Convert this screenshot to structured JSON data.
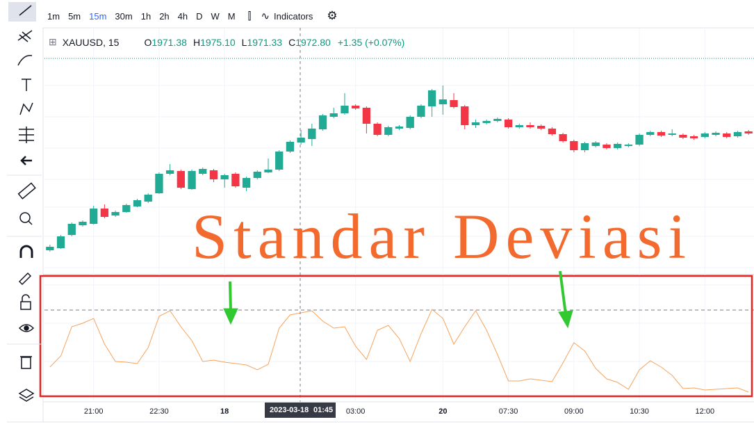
{
  "toolbar": {
    "timeframes": [
      "1m",
      "5m",
      "15m",
      "30m",
      "1h",
      "2h",
      "4h",
      "D",
      "W",
      "M"
    ],
    "active": "15m",
    "indicators": "Indicators"
  },
  "legend": {
    "symbol": "XAUUSD, 15",
    "ohlc": [
      {
        "key": "O",
        "value": "1971.38"
      },
      {
        "key": "H",
        "value": "1975.10"
      },
      {
        "key": "L",
        "value": "1971.33"
      },
      {
        "key": "C",
        "value": "1972.80"
      }
    ],
    "change": "+1.35 (+0.07%)"
  },
  "overlay_title": "Standar Deviasi",
  "crosshair": {
    "date": "2023-03-18",
    "time": "01:45"
  },
  "chart_data": {
    "type": "candlestick",
    "categories": [
      null,
      null,
      null,
      null,
      "21:00",
      null,
      null,
      null,
      null,
      null,
      "22:30",
      null,
      null,
      null,
      null,
      null,
      "18",
      null,
      null,
      null,
      null,
      null,
      null,
      null,
      null,
      null,
      null,
      null,
      "03:00",
      null,
      null,
      null,
      null,
      null,
      null,
      null,
      "20",
      null,
      null,
      null,
      null,
      null,
      "07:30",
      null,
      null,
      null,
      null,
      null,
      "09:00",
      null,
      null,
      null,
      null,
      null,
      "10:30",
      null,
      null,
      null,
      null,
      null,
      "12:00",
      null,
      null,
      null,
      null
    ],
    "open": [
      1930,
      1930.75,
      1935.5,
      1939,
      1939.5,
      1945,
      1942.5,
      1943.75,
      1945.75,
      1947.5,
      1950.5,
      1957.5,
      1958.5,
      1952,
      1957.5,
      1958.75,
      1955.5,
      1957.5,
      1952.5,
      1956,
      1958,
      1959,
      1965.5,
      1968.75,
      1970,
      1973.5,
      1978,
      1979.25,
      1982,
      1981.25,
      1975.5,
      1971.5,
      1973.75,
      1974,
      1978,
      1981.75,
      1982.5,
      1984,
      1981.75,
      1975,
      1975.75,
      1976.5,
      1977,
      1974.25,
      1975,
      1974.75,
      1973.75,
      1971.75,
      1969.25,
      1966,
      1967.5,
      1968,
      1966.75,
      1967.5,
      1968,
      1971.5,
      1972.5,
      1971.5,
      1971.5,
      1971,
      1970.75,
      1971.5,
      1972,
      1971,
      1972.75
    ],
    "high": [
      1932,
      1935.5,
      1940,
      1940.75,
      1946,
      1946.5,
      1944.25,
      1946.75,
      1948.5,
      1950.5,
      1958,
      1961,
      1959,
      1959,
      1959.75,
      1959.25,
      1957.5,
      1958,
      1956.5,
      1958.75,
      1963,
      1966,
      1969.5,
      1973.25,
      1975.5,
      1979,
      1981.25,
      1986.5,
      1982.5,
      1981.75,
      1976,
      1974.75,
      1975,
      1978.5,
      1982.5,
      1988,
      1989.25,
      1986.5,
      1982.25,
      1977,
      1977,
      1977.75,
      1977.5,
      1975.5,
      1976,
      1975.25,
      1974.25,
      1972.25,
      1969.75,
      1969,
      1969.25,
      1968.5,
      1968.75,
      1968.5,
      1972,
      1973,
      1973,
      1973.5,
      1972,
      1971.5,
      1972.5,
      1972.75,
      1972.5,
      1973,
      1973.25
    ],
    "low": [
      1929.5,
      1930.5,
      1935,
      1938.5,
      1939.25,
      1941.5,
      1942,
      1943.5,
      1945.5,
      1947,
      1950.25,
      1957,
      1952,
      1951.75,
      1957,
      1954.5,
      1952.5,
      1952.5,
      1951.25,
      1955.5,
      1957.75,
      1958.5,
      1965,
      1968,
      1967.5,
      1973,
      1977.5,
      1978.75,
      1980.5,
      1972,
      1971,
      1971,
      1973.25,
      1973.5,
      1977.5,
      1978,
      1978.75,
      1981,
      1973.5,
      1974,
      1975.25,
      1976,
      1973.75,
      1973.75,
      1973.75,
      1973.25,
      1971.25,
      1968.75,
      1965.25,
      1965.25,
      1967,
      1966.25,
      1966.25,
      1967,
      1967.5,
      1971,
      1970.75,
      1971,
      1970,
      1969.75,
      1970.25,
      1971,
      1970.25,
      1970.5,
      1971.5
    ],
    "close": [
      1931.25,
      1935,
      1939.5,
      1940.25,
      1945,
      1942,
      1943.75,
      1946.25,
      1948,
      1950,
      1957.5,
      1958.75,
      1952.5,
      1958.5,
      1959.25,
      1955.5,
      1957,
      1953,
      1956,
      1958.25,
      1959,
      1965.5,
      1969,
      1970.5,
      1973.75,
      1978.5,
      1979.25,
      1982,
      1981,
      1975.5,
      1971.5,
      1974.25,
      1974.5,
      1978,
      1982,
      1987.5,
      1984.25,
      1981.5,
      1975,
      1976,
      1976.5,
      1977.25,
      1974.25,
      1975,
      1974.25,
      1973.75,
      1971.75,
      1969.25,
      1966,
      1968.5,
      1968.75,
      1966.75,
      1968.25,
      1968,
      1971.5,
      1972.5,
      1971.25,
      1972,
      1970.5,
      1970.25,
      1972,
      1972.25,
      1970.75,
      1972.5,
      1972
    ],
    "up_color": "#22ab94",
    "down_color": "#f23645",
    "ylim": [
      1920,
      2020
    ],
    "price_line": 1999,
    "price_line_color": "#089981",
    "indicator": {
      "type": "line",
      "color": "#f7a35c",
      "ylim": [
        0,
        8.5
      ],
      "level": 6.2,
      "values": [
        2.1,
        2.9,
        5,
        5.25,
        5.6,
        3.75,
        2.5,
        2.45,
        2.35,
        3.5,
        5.75,
        6.15,
        5,
        4,
        2.5,
        2.6,
        2.45,
        2.35,
        2.25,
        1.9,
        2.3,
        4.9,
        5.85,
        6,
        6.15,
        5.4,
        4.9,
        5,
        3.6,
        2.65,
        4.75,
        5.1,
        4.15,
        2.5,
        4.5,
        6.25,
        5.6,
        3.75,
        5,
        6.15,
        4.75,
        3,
        1.1,
        1.1,
        1.25,
        1.15,
        1.05,
        2.4,
        3.85,
        3.25,
        2,
        1.25,
        1,
        0.5,
        1.9,
        2.55,
        2.1,
        1.5,
        0.55,
        0.6,
        0.45,
        0.5,
        0.55,
        0.6,
        0.3
      ]
    }
  }
}
